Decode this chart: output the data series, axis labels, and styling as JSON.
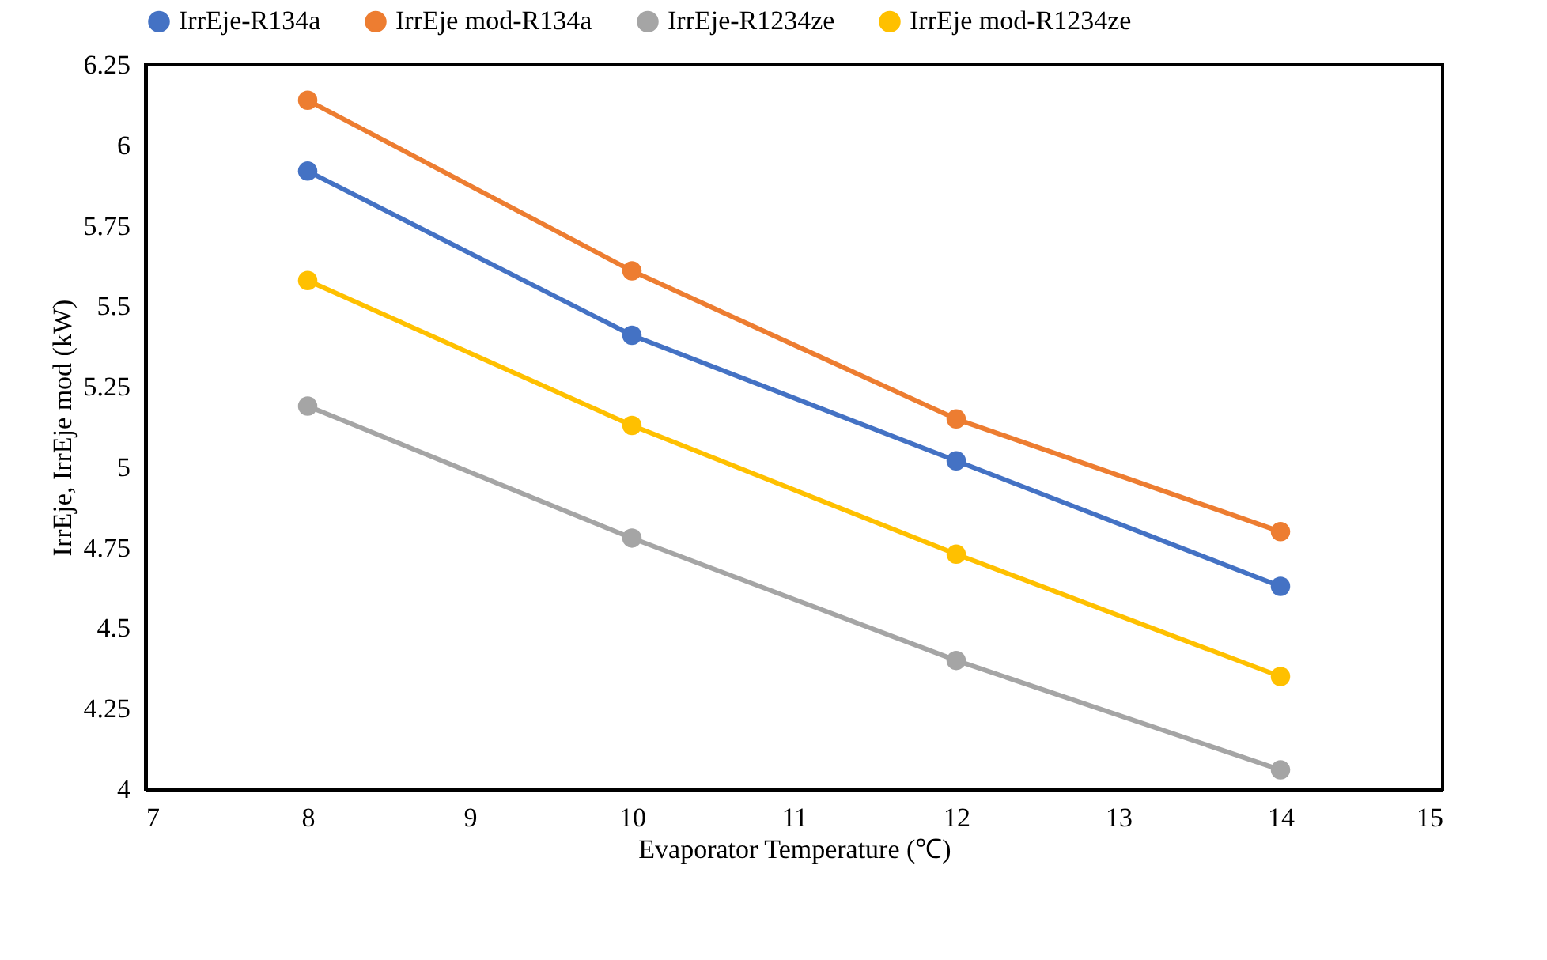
{
  "chart_data": {
    "type": "line",
    "xlabel": "Evaporator Temperature (℃)",
    "ylabel": "IrrEje, IrrEje mod (kW)",
    "x": [
      8,
      10,
      12,
      14
    ],
    "series": [
      {
        "name": "IrrEje-R134a",
        "color": "#4472c4",
        "values": [
          5.92,
          5.41,
          5.02,
          4.63
        ]
      },
      {
        "name": "IrrEje mod-R134a",
        "color": "#ed7d31",
        "values": [
          6.14,
          5.61,
          5.15,
          4.8
        ]
      },
      {
        "name": "IrrEje-R1234ze",
        "color": "#a5a5a5",
        "values": [
          5.19,
          4.78,
          4.4,
          4.06
        ]
      },
      {
        "name": "IrrEje mod-R1234ze",
        "color": "#ffc000",
        "values": [
          5.58,
          5.13,
          4.73,
          4.35
        ]
      }
    ],
    "xlim": [
      7,
      15
    ],
    "xticks": [
      7,
      8,
      9,
      10,
      11,
      12,
      13,
      14,
      15
    ],
    "ylim": [
      4,
      6.25
    ],
    "yticks": [
      4,
      4.25,
      4.5,
      4.75,
      5,
      5.25,
      5.5,
      5.75,
      6,
      6.25
    ],
    "legend": "top",
    "grid": false,
    "marker": "circle",
    "line_style": "solid"
  }
}
